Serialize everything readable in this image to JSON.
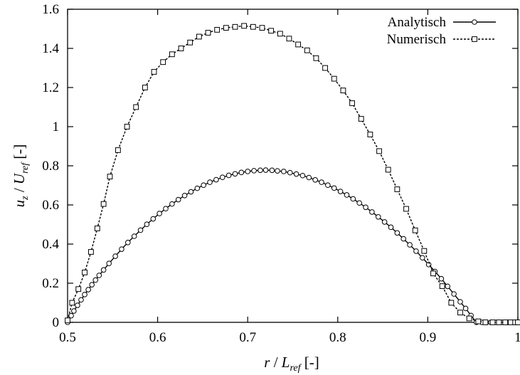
{
  "chart_data": {
    "type": "line",
    "xlabel": "r / L_ref [-]",
    "ylabel": "u_z / U_ref [-]",
    "xlim": [
      0.5,
      1.0
    ],
    "ylim": [
      0,
      1.6
    ],
    "x_ticks": [
      "0.5",
      "0.6",
      "0.7",
      "0.8",
      "0.9",
      "1"
    ],
    "y_ticks": [
      "0",
      "0.2",
      "0.4",
      "0.6",
      "0.8",
      "1",
      "1.2",
      "1.4",
      "1.6"
    ],
    "grid": false,
    "legend": "top-right",
    "series": [
      {
        "name": "Analytisch",
        "line": "solid",
        "marker": "circle",
        "x": [
          0.5,
          0.504,
          0.507,
          0.511,
          0.515,
          0.519,
          0.523,
          0.527,
          0.531,
          0.535,
          0.54,
          0.546,
          0.553,
          0.56,
          0.567,
          0.574,
          0.581,
          0.588,
          0.595,
          0.602,
          0.609,
          0.616,
          0.623,
          0.63,
          0.637,
          0.644,
          0.651,
          0.658,
          0.665,
          0.672,
          0.679,
          0.686,
          0.693,
          0.7,
          0.707,
          0.714,
          0.72,
          0.727,
          0.733,
          0.74,
          0.747,
          0.754,
          0.761,
          0.768,
          0.775,
          0.782,
          0.789,
          0.796,
          0.803,
          0.81,
          0.817,
          0.824,
          0.831,
          0.838,
          0.845,
          0.852,
          0.859,
          0.866,
          0.873,
          0.88,
          0.887,
          0.894,
          0.901,
          0.908,
          0.915,
          0.922,
          0.929,
          0.936,
          0.942,
          0.948,
          0.954,
          0.96,
          0.965,
          0.97,
          0.975,
          0.979,
          0.983,
          0.987,
          0.99,
          0.993,
          0.995,
          0.997,
          0.999,
          1.0
        ],
        "y": [
          0,
          0.034,
          0.058,
          0.087,
          0.115,
          0.142,
          0.167,
          0.192,
          0.216,
          0.24,
          0.268,
          0.301,
          0.338,
          0.374,
          0.408,
          0.44,
          0.471,
          0.501,
          0.529,
          0.556,
          0.581,
          0.605,
          0.627,
          0.648,
          0.667,
          0.685,
          0.701,
          0.716,
          0.729,
          0.741,
          0.751,
          0.759,
          0.766,
          0.771,
          0.775,
          0.777,
          0.778,
          0.777,
          0.774,
          0.771,
          0.765,
          0.758,
          0.75,
          0.74,
          0.728,
          0.716,
          0.701,
          0.686,
          0.669,
          0.651,
          0.631,
          0.61,
          0.588,
          0.564,
          0.539,
          0.513,
          0.486,
          0.457,
          0.427,
          0.396,
          0.364,
          0.33,
          0.295,
          0.26,
          0.223,
          0.184,
          0.145,
          0.105,
          0.071,
          0.035,
          0.0,
          0.0,
          0.0,
          0.0,
          0.0,
          0.0,
          0.0,
          0.0,
          0.0,
          0.0,
          0.0,
          0.0,
          0.0,
          0.0
        ]
      },
      {
        "name": "Numerisch",
        "line": "dashed",
        "marker": "square",
        "x": [
          0.5,
          0.505,
          0.512,
          0.519,
          0.526,
          0.533,
          0.54,
          0.547,
          0.556,
          0.566,
          0.576,
          0.586,
          0.596,
          0.606,
          0.616,
          0.626,
          0.636,
          0.646,
          0.656,
          0.666,
          0.676,
          0.686,
          0.696,
          0.706,
          0.716,
          0.726,
          0.736,
          0.746,
          0.756,
          0.766,
          0.776,
          0.786,
          0.796,
          0.806,
          0.816,
          0.826,
          0.836,
          0.846,
          0.856,
          0.866,
          0.876,
          0.886,
          0.896,
          0.906,
          0.916,
          0.926,
          0.936,
          0.946,
          0.956,
          0.964,
          0.972,
          0.979,
          0.986,
          0.992,
          0.997,
          1.0
        ],
        "y": [
          0.01,
          0.1,
          0.17,
          0.255,
          0.36,
          0.48,
          0.605,
          0.745,
          0.88,
          1.0,
          1.1,
          1.2,
          1.28,
          1.33,
          1.37,
          1.4,
          1.43,
          1.46,
          1.48,
          1.495,
          1.505,
          1.51,
          1.515,
          1.51,
          1.505,
          1.49,
          1.475,
          1.45,
          1.42,
          1.39,
          1.35,
          1.3,
          1.245,
          1.185,
          1.12,
          1.04,
          0.96,
          0.875,
          0.78,
          0.68,
          0.58,
          0.47,
          0.365,
          0.25,
          0.185,
          0.1,
          0.05,
          0.02,
          0.005,
          0.0,
          0.0,
          0.0,
          0.0,
          0.0,
          0.0,
          0.0
        ]
      }
    ]
  }
}
